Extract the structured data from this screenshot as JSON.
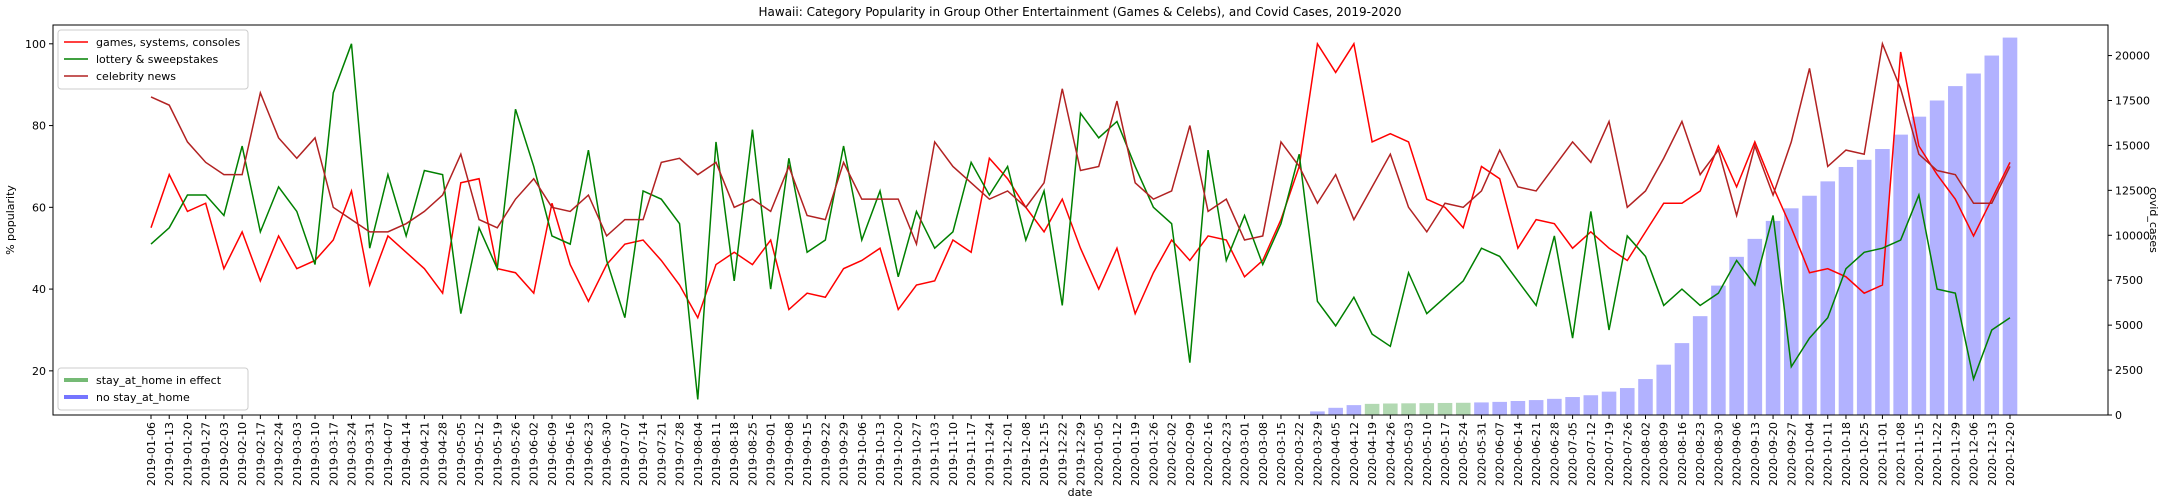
{
  "chart_data": {
    "type": "line",
    "title": "Hawaii: Category Popularity in Group Other Entertainment (Games & Celebs), and Covid Cases, 2019-2020",
    "x_label": "date",
    "y_label": "% popularity",
    "y2_label": "covid_cases",
    "categories": [
      "2019-01-06",
      "2019-01-13",
      "2019-01-20",
      "2019-01-27",
      "2019-02-03",
      "2019-02-10",
      "2019-02-17",
      "2019-02-24",
      "2019-03-03",
      "2019-03-10",
      "2019-03-17",
      "2019-03-24",
      "2019-03-31",
      "2019-04-07",
      "2019-04-14",
      "2019-04-21",
      "2019-04-28",
      "2019-05-05",
      "2019-05-12",
      "2019-05-19",
      "2019-05-26",
      "2019-06-02",
      "2019-06-09",
      "2019-06-16",
      "2019-06-23",
      "2019-06-30",
      "2019-07-07",
      "2019-07-14",
      "2019-07-21",
      "2019-07-28",
      "2019-08-04",
      "2019-08-11",
      "2019-08-18",
      "2019-08-25",
      "2019-09-01",
      "2019-09-08",
      "2019-09-15",
      "2019-09-22",
      "2019-09-29",
      "2019-10-06",
      "2019-10-13",
      "2019-10-20",
      "2019-10-27",
      "2019-11-03",
      "2019-11-10",
      "2019-11-17",
      "2019-11-24",
      "2019-12-01",
      "2019-12-08",
      "2019-12-15",
      "2019-12-22",
      "2019-12-29",
      "2020-01-05",
      "2020-01-12",
      "2020-01-19",
      "2020-01-26",
      "2020-02-02",
      "2020-02-09",
      "2020-02-16",
      "2020-02-23",
      "2020-03-01",
      "2020-03-08",
      "2020-03-15",
      "2020-03-22",
      "2020-03-29",
      "2020-04-05",
      "2020-04-12",
      "2020-04-19",
      "2020-04-26",
      "2020-05-03",
      "2020-05-10",
      "2020-05-17",
      "2020-05-24",
      "2020-05-31",
      "2020-06-07",
      "2020-06-14",
      "2020-06-21",
      "2020-06-28",
      "2020-07-05",
      "2020-07-12",
      "2020-07-19",
      "2020-07-26",
      "2020-08-02",
      "2020-08-09",
      "2020-08-16",
      "2020-08-23",
      "2020-08-30",
      "2020-09-06",
      "2020-09-13",
      "2020-09-20",
      "2020-09-27",
      "2020-10-04",
      "2020-10-11",
      "2020-10-18",
      "2020-10-25",
      "2020-11-01",
      "2020-11-08",
      "2020-11-15",
      "2020-11-22",
      "2020-11-29",
      "2020-12-06",
      "2020-12-13",
      "2020-12-20"
    ],
    "series": [
      {
        "name": "games, systems, consoles",
        "type": "line",
        "color": "#ff0000",
        "values": [
          55,
          68,
          59,
          61,
          45,
          54,
          42,
          53,
          45,
          47,
          52,
          64,
          41,
          53,
          49,
          45,
          39,
          66,
          67,
          45,
          44,
          39,
          61,
          46,
          37,
          46,
          51,
          52,
          47,
          41,
          33,
          46,
          49,
          46,
          52,
          35,
          39,
          38,
          45,
          47,
          50,
          35,
          41,
          42,
          52,
          49,
          72,
          67,
          60,
          54,
          62,
          50,
          40,
          50,
          34,
          44,
          52,
          47,
          53,
          52,
          43,
          47,
          57,
          70,
          100,
          93,
          100,
          76,
          78,
          76,
          62,
          60,
          55,
          70,
          67,
          50,
          57,
          56,
          50,
          54,
          50,
          47,
          54,
          61,
          61,
          64,
          75,
          65,
          76,
          65,
          55,
          44,
          45,
          43,
          39,
          41,
          98,
          75,
          68,
          62,
          53,
          62,
          71
        ]
      },
      {
        "name": "lottery & sweepstakes",
        "type": "line",
        "color": "#008000",
        "values": [
          51,
          55,
          63,
          63,
          58,
          75,
          54,
          65,
          59,
          46,
          88,
          100,
          50,
          68,
          53,
          69,
          68,
          34,
          55,
          45,
          84,
          70,
          53,
          51,
          74,
          47,
          33,
          64,
          62,
          56,
          13,
          76,
          42,
          79,
          40,
          72,
          49,
          52,
          75,
          52,
          64,
          43,
          59,
          50,
          54,
          71,
          63,
          70,
          52,
          64,
          36,
          83,
          77,
          81,
          70,
          60,
          56,
          22,
          74,
          47,
          58,
          46,
          56,
          73,
          37,
          31,
          38,
          29,
          26,
          44,
          34,
          38,
          42,
          50,
          48,
          42,
          36,
          53,
          28,
          59,
          30,
          53,
          48,
          36,
          40,
          36,
          39,
          47,
          41,
          58,
          21,
          28,
          33,
          45,
          49,
          50,
          52,
          63,
          40,
          39,
          18,
          30,
          33
        ]
      },
      {
        "name": "celebrity news",
        "type": "line",
        "color": "#b22222",
        "values": [
          87,
          85,
          76,
          71,
          68,
          68,
          88,
          77,
          72,
          77,
          60,
          57,
          54,
          54,
          56,
          59,
          63,
          73,
          57,
          55,
          62,
          67,
          60,
          59,
          63,
          53,
          57,
          57,
          71,
          72,
          68,
          71,
          60,
          62,
          59,
          70,
          58,
          57,
          71,
          62,
          62,
          62,
          51,
          76,
          70,
          66,
          62,
          64,
          60,
          66,
          89,
          69,
          70,
          86,
          66,
          62,
          64,
          80,
          59,
          62,
          52,
          53,
          76,
          70,
          61,
          68,
          57,
          65,
          73,
          60,
          54,
          61,
          60,
          64,
          74,
          65,
          64,
          70,
          76,
          71,
          81,
          60,
          64,
          72,
          81,
          68,
          74,
          58,
          75,
          63,
          76,
          94,
          70,
          74,
          73,
          100,
          89,
          73,
          69,
          68,
          61,
          61,
          70
        ]
      },
      {
        "name": "stay_at_home in effect",
        "type": "bar",
        "axis": "y2",
        "color": "#008000",
        "values": [
          null,
          null,
          null,
          null,
          null,
          null,
          null,
          null,
          null,
          null,
          null,
          null,
          null,
          null,
          null,
          null,
          null,
          null,
          null,
          null,
          null,
          null,
          null,
          null,
          null,
          null,
          null,
          null,
          null,
          null,
          null,
          null,
          null,
          null,
          null,
          null,
          null,
          null,
          null,
          null,
          null,
          null,
          null,
          null,
          null,
          null,
          null,
          null,
          null,
          null,
          null,
          null,
          null,
          null,
          null,
          null,
          null,
          null,
          null,
          null,
          null,
          null,
          null,
          null,
          null,
          null,
          null,
          620,
          640,
          650,
          660,
          670,
          680,
          null,
          null,
          null,
          null,
          null,
          null,
          null,
          null,
          null,
          null,
          null,
          null,
          null,
          null,
          null,
          null,
          null,
          null,
          null,
          null,
          null,
          null,
          null,
          null,
          null,
          null,
          null,
          null,
          null,
          null
        ]
      },
      {
        "name": "no stay_at_home",
        "type": "bar",
        "axis": "y2",
        "color": "#0000ff",
        "values": [
          null,
          null,
          null,
          null,
          null,
          null,
          null,
          null,
          null,
          null,
          null,
          null,
          null,
          null,
          null,
          null,
          null,
          null,
          null,
          null,
          null,
          null,
          null,
          null,
          null,
          null,
          null,
          null,
          null,
          null,
          null,
          null,
          null,
          null,
          null,
          null,
          null,
          null,
          null,
          null,
          null,
          null,
          null,
          null,
          null,
          null,
          null,
          null,
          null,
          null,
          null,
          null,
          null,
          null,
          null,
          null,
          null,
          null,
          null,
          null,
          null,
          null,
          null,
          null,
          200,
          400,
          550,
          null,
          null,
          null,
          null,
          null,
          null,
          700,
          730,
          780,
          830,
          900,
          1000,
          1100,
          1300,
          1500,
          2000,
          2800,
          4000,
          5500,
          7200,
          8800,
          9800,
          10800,
          11500,
          12200,
          13000,
          13800,
          14200,
          14800,
          15600,
          16600,
          17500,
          18300,
          19000,
          20000,
          21000
        ]
      }
    ],
    "bar_alpha": 0.3,
    "ylim": [
      9.2,
      104.6
    ],
    "yticks": [
      20,
      40,
      60,
      80,
      100
    ],
    "y2lim": [
      0,
      21700
    ],
    "y2ticks": [
      0,
      2500,
      5000,
      7500,
      10000,
      12500,
      15000,
      17500,
      20000
    ],
    "line_legend": "upper left",
    "bar_legend": "lower left"
  }
}
